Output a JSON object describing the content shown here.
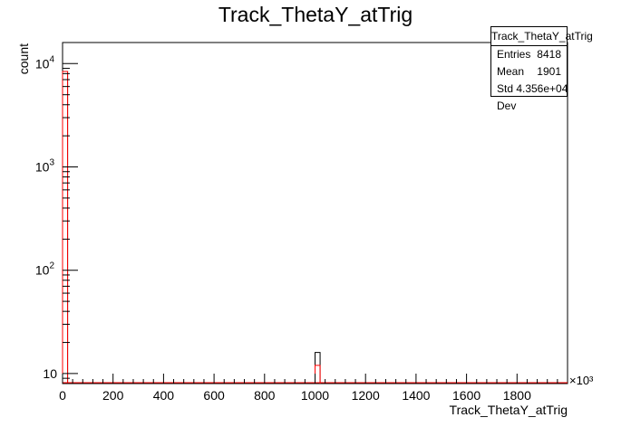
{
  "chart_data": {
    "type": "bar",
    "title": "Track_ThetaY_atTrig",
    "xlabel": "Track_ThetaY_atTrig",
    "ylabel": "count",
    "x_multiplier_label": "×10³",
    "xlim": [
      0,
      2000
    ],
    "ylim": [
      8,
      16000
    ],
    "y_scale": "log",
    "x_ticks": [
      0,
      200,
      400,
      600,
      800,
      1000,
      1200,
      1400,
      1600,
      1800
    ],
    "y_ticks": [
      {
        "value": 10,
        "base": "10",
        "exp": ""
      },
      {
        "value": 100,
        "base": "10",
        "exp": "2"
      },
      {
        "value": 1000,
        "base": "10",
        "exp": "3"
      },
      {
        "value": 10000,
        "base": "10",
        "exp": "4"
      }
    ],
    "bin_width": 20,
    "series": [
      {
        "color": "#000000",
        "bins": [
          {
            "x0": 0,
            "x1": 20,
            "value": 8400
          },
          {
            "x0": 1000,
            "x1": 1020,
            "value": 16
          }
        ]
      },
      {
        "color": "#ff0000",
        "bins": [
          {
            "x0": 0,
            "x1": 20,
            "value": 8400
          },
          {
            "x0": 1000,
            "x1": 1020,
            "value": 12
          }
        ]
      }
    ],
    "grid": false,
    "legend": "none"
  },
  "stats": {
    "title": "Track_ThetaY_atTrig",
    "rows": [
      {
        "label": "Entries",
        "value": "8418"
      },
      {
        "label": "Mean",
        "value": "1901"
      },
      {
        "label": "Std Dev",
        "value": "4.356e+04"
      }
    ]
  }
}
